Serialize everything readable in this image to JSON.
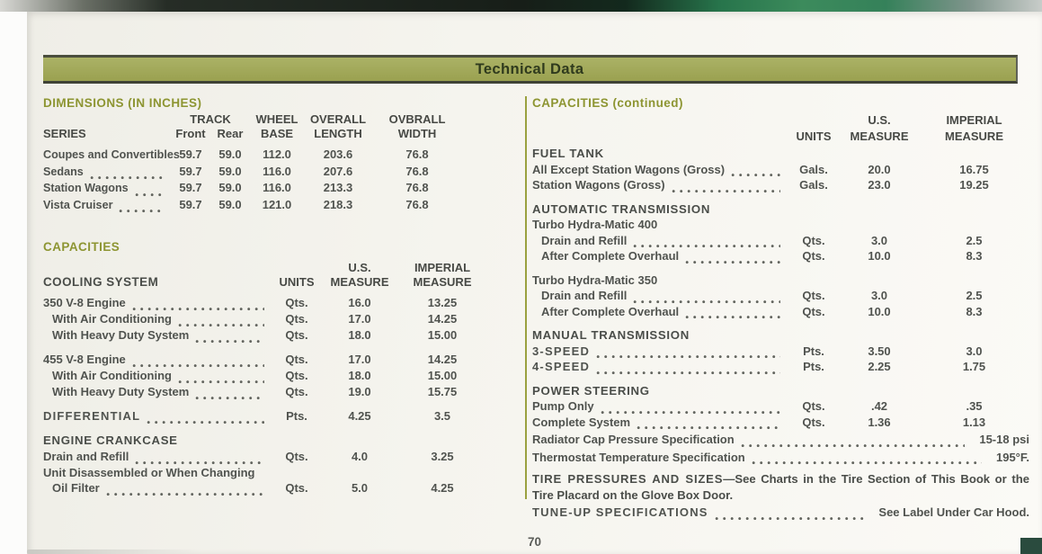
{
  "colors": {
    "accent_olive": "#8d9532",
    "banner_background": "#a3aa57",
    "paper": "#f4f3ed"
  },
  "banner": {
    "title": "Technical Data"
  },
  "left": {
    "dimensions": {
      "heading": "DIMENSIONS (IN INCHES)",
      "headers": {
        "series": "SERIES",
        "track": "TRACK",
        "front": "Front",
        "rear": "Rear",
        "wheel_line1": "WHEEL",
        "wheel_line2": "BASE",
        "length_line1": "OVERALL",
        "length_line2": "LENGTH",
        "width_line1": "OVBRALL",
        "width_line2": "WIDTH"
      },
      "rows": [
        {
          "series": "Coupes and Convertibles",
          "front": "59.7",
          "rear": "59.0",
          "wheel_base": "112.0",
          "overall_length": "203.6",
          "overall_width": "76.8"
        },
        {
          "series": "Sedans",
          "front": "59.7",
          "rear": "59.0",
          "wheel_base": "116.0",
          "overall_length": "207.6",
          "overall_width": "76.8"
        },
        {
          "series": "Station Wagons",
          "front": "59.7",
          "rear": "59.0",
          "wheel_base": "116.0",
          "overall_length": "213.3",
          "overall_width": "76.8"
        },
        {
          "series": "Vista Cruiser",
          "front": "59.7",
          "rear": "59.0",
          "wheel_base": "121.0",
          "overall_length": "218.3",
          "overall_width": "76.8"
        }
      ]
    },
    "capacities": {
      "heading": "CAPACITIES",
      "table_label": "COOLING SYSTEM",
      "headers": {
        "units": "UNITS",
        "us_line1": "U.S.",
        "us_line2": "MEASURE",
        "imperial_line1": "IMPERIAL",
        "imperial_line2": "MEASURE"
      },
      "rows": [
        {
          "type": "item",
          "label": "350 V-8 Engine",
          "units": "Qts.",
          "us": "16.0",
          "imperial": "13.25"
        },
        {
          "type": "item",
          "indent": true,
          "label": "With Air Conditioning",
          "units": "Qts.",
          "us": "17.0",
          "imperial": "14.25"
        },
        {
          "type": "item",
          "indent": true,
          "label": "With Heavy Duty System",
          "units": "Qts.",
          "us": "18.0",
          "imperial": "15.00"
        },
        {
          "type": "item",
          "gap": true,
          "label": "455 V-8 Engine",
          "units": "Qts.",
          "us": "17.0",
          "imperial": "14.25"
        },
        {
          "type": "item",
          "indent": true,
          "label": "With Air Conditioning",
          "units": "Qts.",
          "us": "18.0",
          "imperial": "15.00"
        },
        {
          "type": "item",
          "indent": true,
          "label": "With Heavy Duty System",
          "units": "Qts.",
          "us": "19.0",
          "imperial": "15.75"
        },
        {
          "type": "item",
          "gap": true,
          "caps": true,
          "label": "DIFFERENTIAL",
          "units": "Pts.",
          "us": "4.25",
          "imperial": "3.5"
        },
        {
          "type": "section",
          "gap": true,
          "label": "ENGINE CRANKCASE"
        },
        {
          "type": "item",
          "label": "Drain and Refill",
          "units": "Qts.",
          "us": "4.0",
          "imperial": "3.25"
        },
        {
          "type": "plain",
          "label": "Unit Disassembled or When Changing"
        },
        {
          "type": "item",
          "indent": true,
          "label": "Oil Filter",
          "units": "Qts.",
          "us": "5.0",
          "imperial": "4.25"
        }
      ]
    }
  },
  "right": {
    "heading": "CAPACITIES (continued)",
    "headers": {
      "units": "UNITS",
      "us_line1": "U.S.",
      "us_line2": "MEASURE",
      "imperial_line1": "IMPERIAL",
      "imperial_line2": "MEASURE"
    },
    "rows": [
      {
        "type": "section",
        "first": true,
        "label": "FUEL TANK"
      },
      {
        "type": "item",
        "label": "All Except Station Wagons (Gross)",
        "units": "Gals.",
        "us": "20.0",
        "imperial": "16.75"
      },
      {
        "type": "item",
        "label": "Station Wagons (Gross)",
        "units": "Gals.",
        "us": "23.0",
        "imperial": "19.25"
      },
      {
        "type": "section",
        "gap": true,
        "label": "AUTOMATIC TRANSMISSION"
      },
      {
        "type": "sub",
        "label": "Turbo Hydra-Matic 400"
      },
      {
        "type": "item",
        "indent": true,
        "label": "Drain and Refill",
        "units": "Qts.",
        "us": "3.0",
        "imperial": "2.5"
      },
      {
        "type": "item",
        "indent": true,
        "label": "After Complete Overhaul",
        "units": "Qts.",
        "us": "10.0",
        "imperial": "8.3"
      },
      {
        "type": "sub",
        "gap": true,
        "label": "Turbo Hydra-Matic 350"
      },
      {
        "type": "item",
        "indent": true,
        "label": "Drain and Refill",
        "units": "Qts.",
        "us": "3.0",
        "imperial": "2.5"
      },
      {
        "type": "item",
        "indent": true,
        "label": "After Complete Overhaul",
        "units": "Qts.",
        "us": "10.0",
        "imperial": "8.3"
      },
      {
        "type": "section",
        "gap": true,
        "label": "MANUAL TRANSMISSION"
      },
      {
        "type": "item",
        "caps": true,
        "label": "3-SPEED",
        "units": "Pts.",
        "us": "3.50",
        "imperial": "3.0"
      },
      {
        "type": "item",
        "caps": true,
        "label": "4-SPEED",
        "units": "Pts.",
        "us": "2.25",
        "imperial": "1.75"
      },
      {
        "type": "section",
        "gap": true,
        "label": "POWER STEERING"
      },
      {
        "type": "item",
        "label": "Pump Only",
        "units": "Qts.",
        "us": ".42",
        "imperial": ".35"
      },
      {
        "type": "item",
        "label": "Complete System",
        "units": "Qts.",
        "us": "1.36",
        "imperial": "1.13"
      },
      {
        "type": "wide",
        "gap": true,
        "label": "Radiator Cap Pressure Specification",
        "value": "15-18 psi"
      },
      {
        "type": "wide",
        "label": "Thermostat Temperature Specification",
        "value": "195°F."
      },
      {
        "type": "para",
        "gap": true,
        "lead": "TIRE PRESSURES AND SIZES",
        "text": "—See Charts in the Tire Section of This Book or the Tire Placard on the Glove Box Door."
      },
      {
        "type": "wide",
        "gap": true,
        "caps": true,
        "label": "TUNE-UP SPECIFICATIONS",
        "value": "See Label Under Car Hood."
      }
    ]
  },
  "footer": {
    "page_number": "70"
  }
}
